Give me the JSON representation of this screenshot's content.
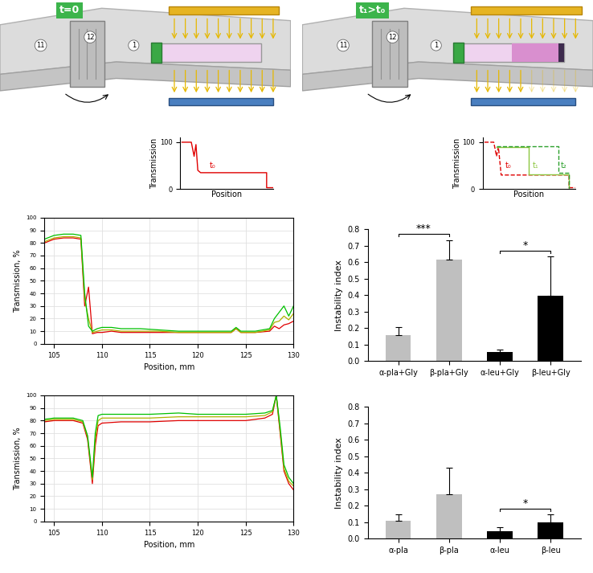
{
  "schematics": [
    {
      "time_label": "t=0",
      "rotor_positions": [
        "11",
        "12",
        "1"
      ],
      "inset": {
        "xlabel": "Position",
        "ylabel": "Transmission",
        "ylim": [
          0,
          110
        ],
        "yticks": [
          0,
          100
        ],
        "curve_labels": [
          "t₀"
        ]
      }
    },
    {
      "time_label": "t₁>t₀",
      "rotor_positions": [
        "11",
        "12",
        "1"
      ],
      "inset": {
        "xlabel": "Position",
        "ylabel": "Transmission",
        "ylim": [
          0,
          110
        ],
        "yticks": [
          0,
          100
        ],
        "curve_labels": [
          "t₀",
          "t₁",
          "t₂"
        ]
      }
    }
  ],
  "chart_data": [
    {
      "type": "line",
      "xlabel": "Position, mm",
      "ylabel": "Transmission, %",
      "x": [
        104,
        105,
        106,
        107,
        107.8,
        108.2,
        108.6,
        109,
        109.5,
        110,
        111,
        112,
        114,
        116,
        118,
        120,
        122,
        123.5,
        124,
        124.5,
        126,
        127.5,
        128,
        128.5,
        129,
        129.5,
        130
      ],
      "series": [
        {
          "color": "#e00000",
          "values": [
            80,
            83,
            84,
            84,
            83,
            30,
            45,
            8,
            9,
            9,
            10,
            9,
            9,
            9,
            9,
            9,
            9,
            9,
            12,
            9,
            9,
            10,
            14,
            12,
            15,
            16,
            18
          ]
        },
        {
          "color": "#b0b000",
          "values": [
            81,
            84,
            85,
            85,
            84,
            35,
            20,
            9,
            10,
            11,
            11,
            10,
            10,
            10,
            9,
            9,
            9,
            9,
            12,
            9,
            9,
            11,
            17,
            18,
            22,
            19,
            24
          ]
        },
        {
          "color": "#00c000",
          "values": [
            83,
            86,
            87,
            87,
            86,
            40,
            14,
            10,
            12,
            13,
            13,
            12,
            12,
            11,
            10,
            10,
            10,
            10,
            13,
            10,
            10,
            12,
            20,
            25,
            30,
            22,
            30
          ]
        }
      ],
      "xlim": [
        104,
        130
      ],
      "xticks": [
        105,
        110,
        115,
        120,
        125,
        130
      ],
      "ylim": [
        0,
        100
      ],
      "yticks": [
        0,
        10,
        20,
        30,
        40,
        50,
        60,
        70,
        80,
        90,
        100
      ],
      "grid": true
    },
    {
      "type": "bar",
      "ylabel": "Instability index",
      "categories": [
        "α-pla+Gly",
        "β-pla+Gly",
        "α-leu+Gly",
        "β-leu+Gly"
      ],
      "values": [
        0.155,
        0.615,
        0.055,
        0.395
      ],
      "error": [
        0.05,
        0.12,
        0.015,
        0.24
      ],
      "colors": [
        "#bfbfbf",
        "#bfbfbf",
        "#000000",
        "#000000"
      ],
      "significance": [
        {
          "from": 0,
          "to": 1,
          "label": "***"
        },
        {
          "from": 2,
          "to": 3,
          "label": "*"
        }
      ],
      "ylim": [
        0,
        0.8
      ],
      "yticks": [
        0.0,
        0.1,
        0.2,
        0.3,
        0.4,
        0.5,
        0.6,
        0.7,
        0.8
      ],
      "grid": false
    },
    {
      "type": "line",
      "xlabel": "Position, mm",
      "ylabel": "Transmission, %",
      "x": [
        104,
        105,
        106,
        107,
        108,
        108.5,
        109,
        109.3,
        109.6,
        110,
        112,
        115,
        118,
        120,
        122,
        125,
        127,
        127.8,
        128.2,
        128.6,
        129,
        129.5,
        130
      ],
      "series": [
        {
          "color": "#e00000",
          "values": [
            79,
            80,
            80,
            80,
            78,
            65,
            30,
            60,
            76,
            78,
            79,
            79,
            80,
            80,
            80,
            80,
            82,
            85,
            100,
            70,
            40,
            30,
            25
          ]
        },
        {
          "color": "#b0b000",
          "values": [
            80,
            81,
            81,
            81,
            79,
            67,
            33,
            65,
            80,
            82,
            82,
            82,
            83,
            83,
            83,
            83,
            84,
            87,
            100,
            72,
            42,
            32,
            28
          ]
        },
        {
          "color": "#00c000",
          "values": [
            81,
            82,
            82,
            82,
            80,
            68,
            35,
            70,
            84,
            85,
            85,
            85,
            86,
            85,
            85,
            85,
            86,
            88,
            100,
            75,
            45,
            35,
            30
          ]
        }
      ],
      "xlim": [
        104,
        130
      ],
      "xticks": [
        105,
        110,
        115,
        120,
        125,
        130
      ],
      "ylim": [
        0,
        100
      ],
      "yticks": [
        0,
        10,
        20,
        30,
        40,
        50,
        60,
        70,
        80,
        90,
        100
      ],
      "grid": true
    },
    {
      "type": "bar",
      "ylabel": "Instability index",
      "categories": [
        "α-pla",
        "β-pla",
        "α-leu",
        "β-leu"
      ],
      "values": [
        0.11,
        0.27,
        0.045,
        0.1
      ],
      "error": [
        0.035,
        0.16,
        0.025,
        0.045
      ],
      "colors": [
        "#bfbfbf",
        "#bfbfbf",
        "#000000",
        "#000000"
      ],
      "significance": [
        {
          "from": 2,
          "to": 3,
          "label": "*"
        }
      ],
      "ylim": [
        0,
        0.8
      ],
      "yticks": [
        0.0,
        0.1,
        0.2,
        0.3,
        0.4,
        0.5,
        0.6,
        0.7,
        0.8
      ],
      "grid": false
    }
  ]
}
